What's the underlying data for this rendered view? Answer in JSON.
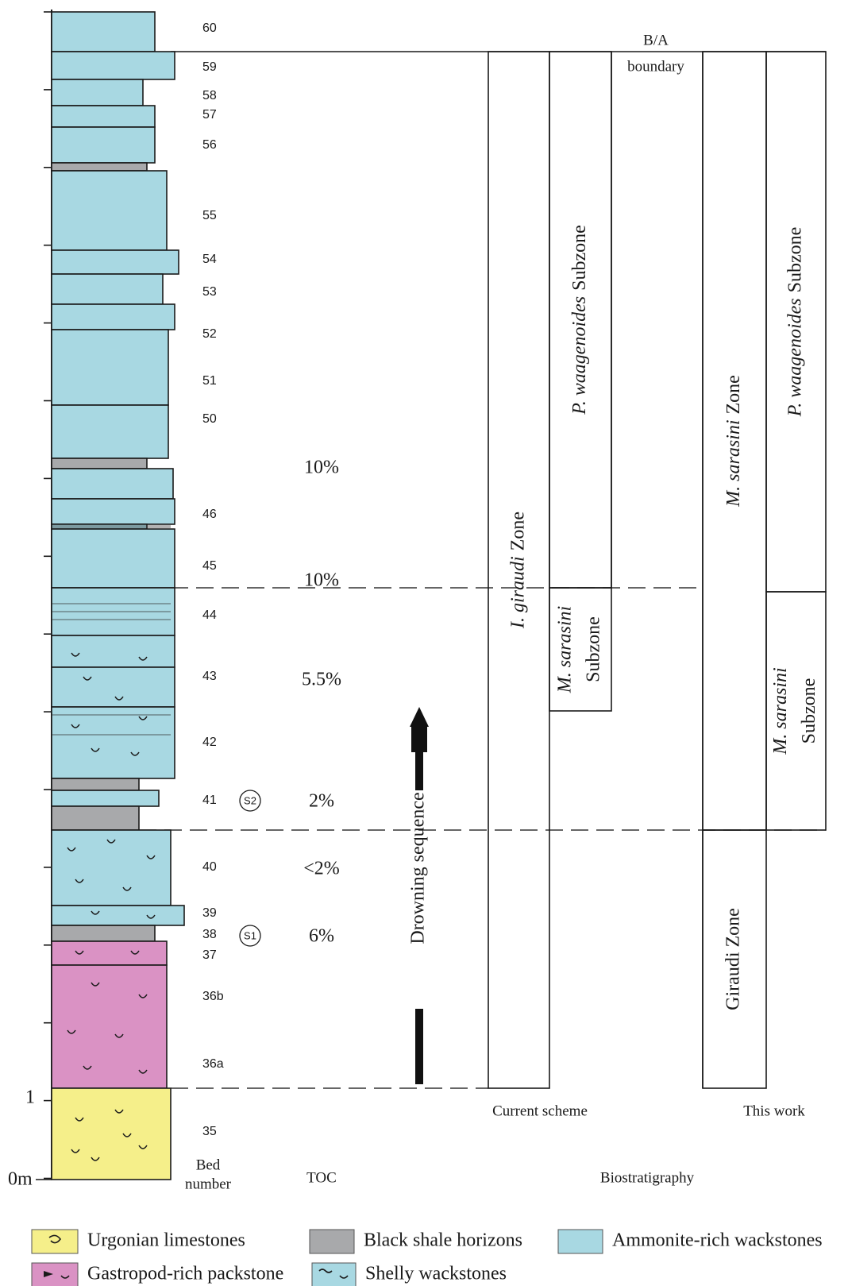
{
  "scale_labels": [
    "1",
    "0m"
  ],
  "bed_numbers": [
    "60",
    "59",
    "58",
    "57",
    "56",
    "55",
    "54",
    "53",
    "52",
    "51",
    "50",
    "46",
    "45",
    "44",
    "43",
    "42",
    "41",
    "40",
    "39",
    "38",
    "37",
    "36b",
    "36a",
    "35"
  ],
  "samples": [
    "S2",
    "S1"
  ],
  "toc_values": [
    "10%",
    "10%",
    "5.5%",
    "2%",
    "<2%",
    "6%"
  ],
  "headers": {
    "bed_number": [
      "Bed",
      "number"
    ],
    "toc": "TOC",
    "biostratigraphy": "Biostratigraphy"
  },
  "boundary": [
    "B/A",
    "boundary"
  ],
  "current_scheme": {
    "label": "Current scheme",
    "zones": [
      {
        "taxon": "I. giraudi",
        "rank": "Zone"
      },
      {
        "taxon": "P. waagenoides",
        "rank": "Subzone"
      },
      {
        "taxon": "M. sarasini",
        "rank": "Subzone"
      }
    ]
  },
  "this_work": {
    "label": "This work",
    "zones": [
      {
        "taxon": "M. sarasini",
        "rank": "Zone"
      },
      {
        "taxon": "P. waagenoides",
        "rank": "Subzone"
      },
      {
        "taxon": "M. sarasini",
        "rank": "Subzone"
      },
      {
        "label": "Giraudi Zone"
      }
    ]
  },
  "arrow_label": "Drowning sequence",
  "legend": [
    {
      "label": "Urgonian limestones",
      "color": "#f5ef8a"
    },
    {
      "label": "Black shale horizons",
      "color": "#a8a9ab"
    },
    {
      "label": "Ammonite-rich wackstones",
      "color": "#a8d8e2"
    },
    {
      "label": "Gastropod-rich packstone",
      "color": "#da92c4"
    },
    {
      "label": "Shelly wackstones",
      "color": "#a8d8e2"
    }
  ]
}
